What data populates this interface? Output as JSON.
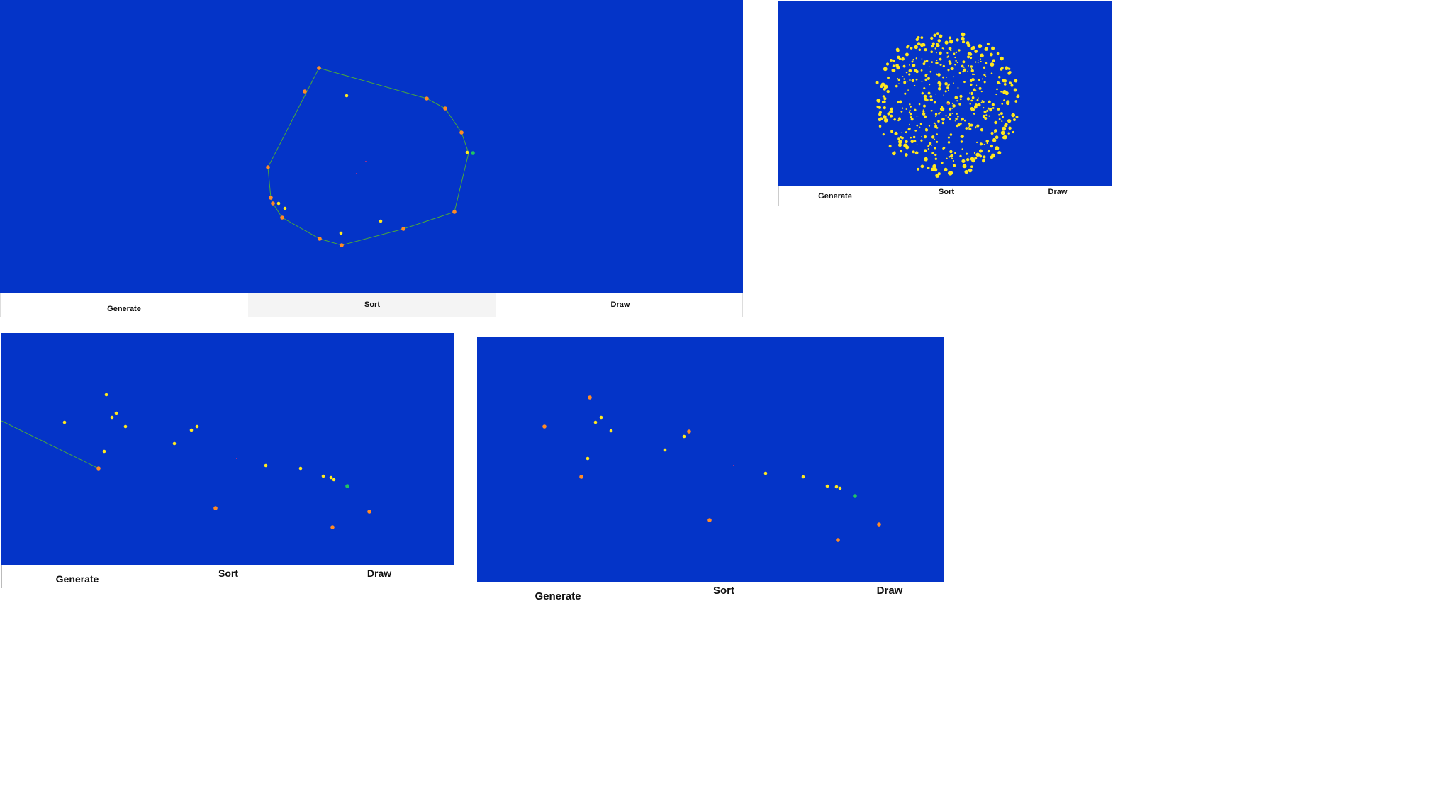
{
  "colors": {
    "canvas_bg": "#0434c8",
    "hull_point": "#ff8a26",
    "interior_point": "#ffe81f",
    "hull_line": "#4aa83a",
    "start_point": "#22c460",
    "centroid": "#c03080"
  },
  "panels": [
    {
      "id": "top-left",
      "buttons": {
        "generate": "Generate",
        "sort": "Sort",
        "draw": "Draw"
      },
      "hull_closed": true,
      "points_orange": [
        [
          450,
          96
        ],
        [
          430,
          129
        ],
        [
          602,
          139
        ],
        [
          628,
          153
        ],
        [
          651,
          187
        ],
        [
          378,
          236
        ],
        [
          382,
          279
        ],
        [
          385,
          287
        ],
        [
          398,
          307
        ],
        [
          451,
          337
        ],
        [
          482,
          346
        ],
        [
          569,
          323
        ],
        [
          641,
          299
        ]
      ],
      "points_yellow": [
        [
          489,
          135
        ],
        [
          659,
          215
        ],
        [
          393,
          287
        ],
        [
          402,
          294
        ],
        [
          537,
          312
        ],
        [
          481,
          329
        ]
      ],
      "points_green": [
        [
          667,
          216
        ]
      ],
      "hull_polyline": [
        [
          450,
          96
        ],
        [
          602,
          139
        ],
        [
          628,
          153
        ],
        [
          651,
          187
        ],
        [
          661,
          216
        ],
        [
          641,
          299
        ],
        [
          569,
          323
        ],
        [
          482,
          346
        ],
        [
          451,
          337
        ],
        [
          398,
          307
        ],
        [
          385,
          287
        ],
        [
          382,
          279
        ],
        [
          378,
          236
        ],
        [
          450,
          96
        ]
      ],
      "centroid": [
        [
          516,
          228
        ],
        [
          503,
          245
        ]
      ]
    },
    {
      "id": "top-right",
      "buttons": {
        "generate": "Generate",
        "sort": "Sort",
        "draw": "Draw"
      },
      "cloud": {
        "cx": 1335,
        "cy": 146,
        "r": 103,
        "count": 520,
        "seed": 7
      },
      "centroid": [
        [
          1337,
          147
        ]
      ]
    },
    {
      "id": "bottom-left",
      "buttons": {
        "generate": "Generate",
        "sort": "Sort",
        "draw": "Draw"
      },
      "points_orange": [
        [
          139,
          661
        ],
        [
          304,
          717
        ],
        [
          521,
          722
        ],
        [
          469,
          744
        ]
      ],
      "points_yellow": [
        [
          91,
          596
        ],
        [
          150,
          557
        ],
        [
          158,
          589
        ],
        [
          164,
          583
        ],
        [
          177,
          602
        ],
        [
          147,
          637
        ],
        [
          246,
          626
        ],
        [
          270,
          607
        ],
        [
          278,
          602
        ],
        [
          375,
          657
        ],
        [
          424,
          661
        ],
        [
          456,
          672
        ],
        [
          467,
          674
        ],
        [
          471,
          677
        ]
      ],
      "points_green": [
        [
          490,
          686
        ]
      ],
      "line": [
        [
          2,
          594
        ],
        [
          139,
          661
        ]
      ],
      "centroid": [
        [
          334,
          647
        ]
      ]
    },
    {
      "id": "bottom-right",
      "buttons": {
        "generate": "Generate",
        "sort": "Sort",
        "draw": "Draw"
      },
      "points_orange": [
        [
          768,
          602
        ],
        [
          832,
          561
        ],
        [
          972,
          609
        ],
        [
          820,
          673
        ],
        [
          1001,
          734
        ],
        [
          1240,
          740
        ],
        [
          1182,
          762
        ]
      ],
      "points_yellow": [
        [
          848,
          589
        ],
        [
          840,
          596
        ],
        [
          862,
          608
        ],
        [
          938,
          635
        ],
        [
          965,
          616
        ],
        [
          829,
          647
        ],
        [
          1080,
          668
        ],
        [
          1133,
          673
        ],
        [
          1167,
          686
        ],
        [
          1180,
          687
        ],
        [
          1185,
          689
        ]
      ],
      "points_green": [
        [
          1206,
          700
        ]
      ],
      "centroid": [
        [
          1035,
          657
        ]
      ]
    }
  ]
}
